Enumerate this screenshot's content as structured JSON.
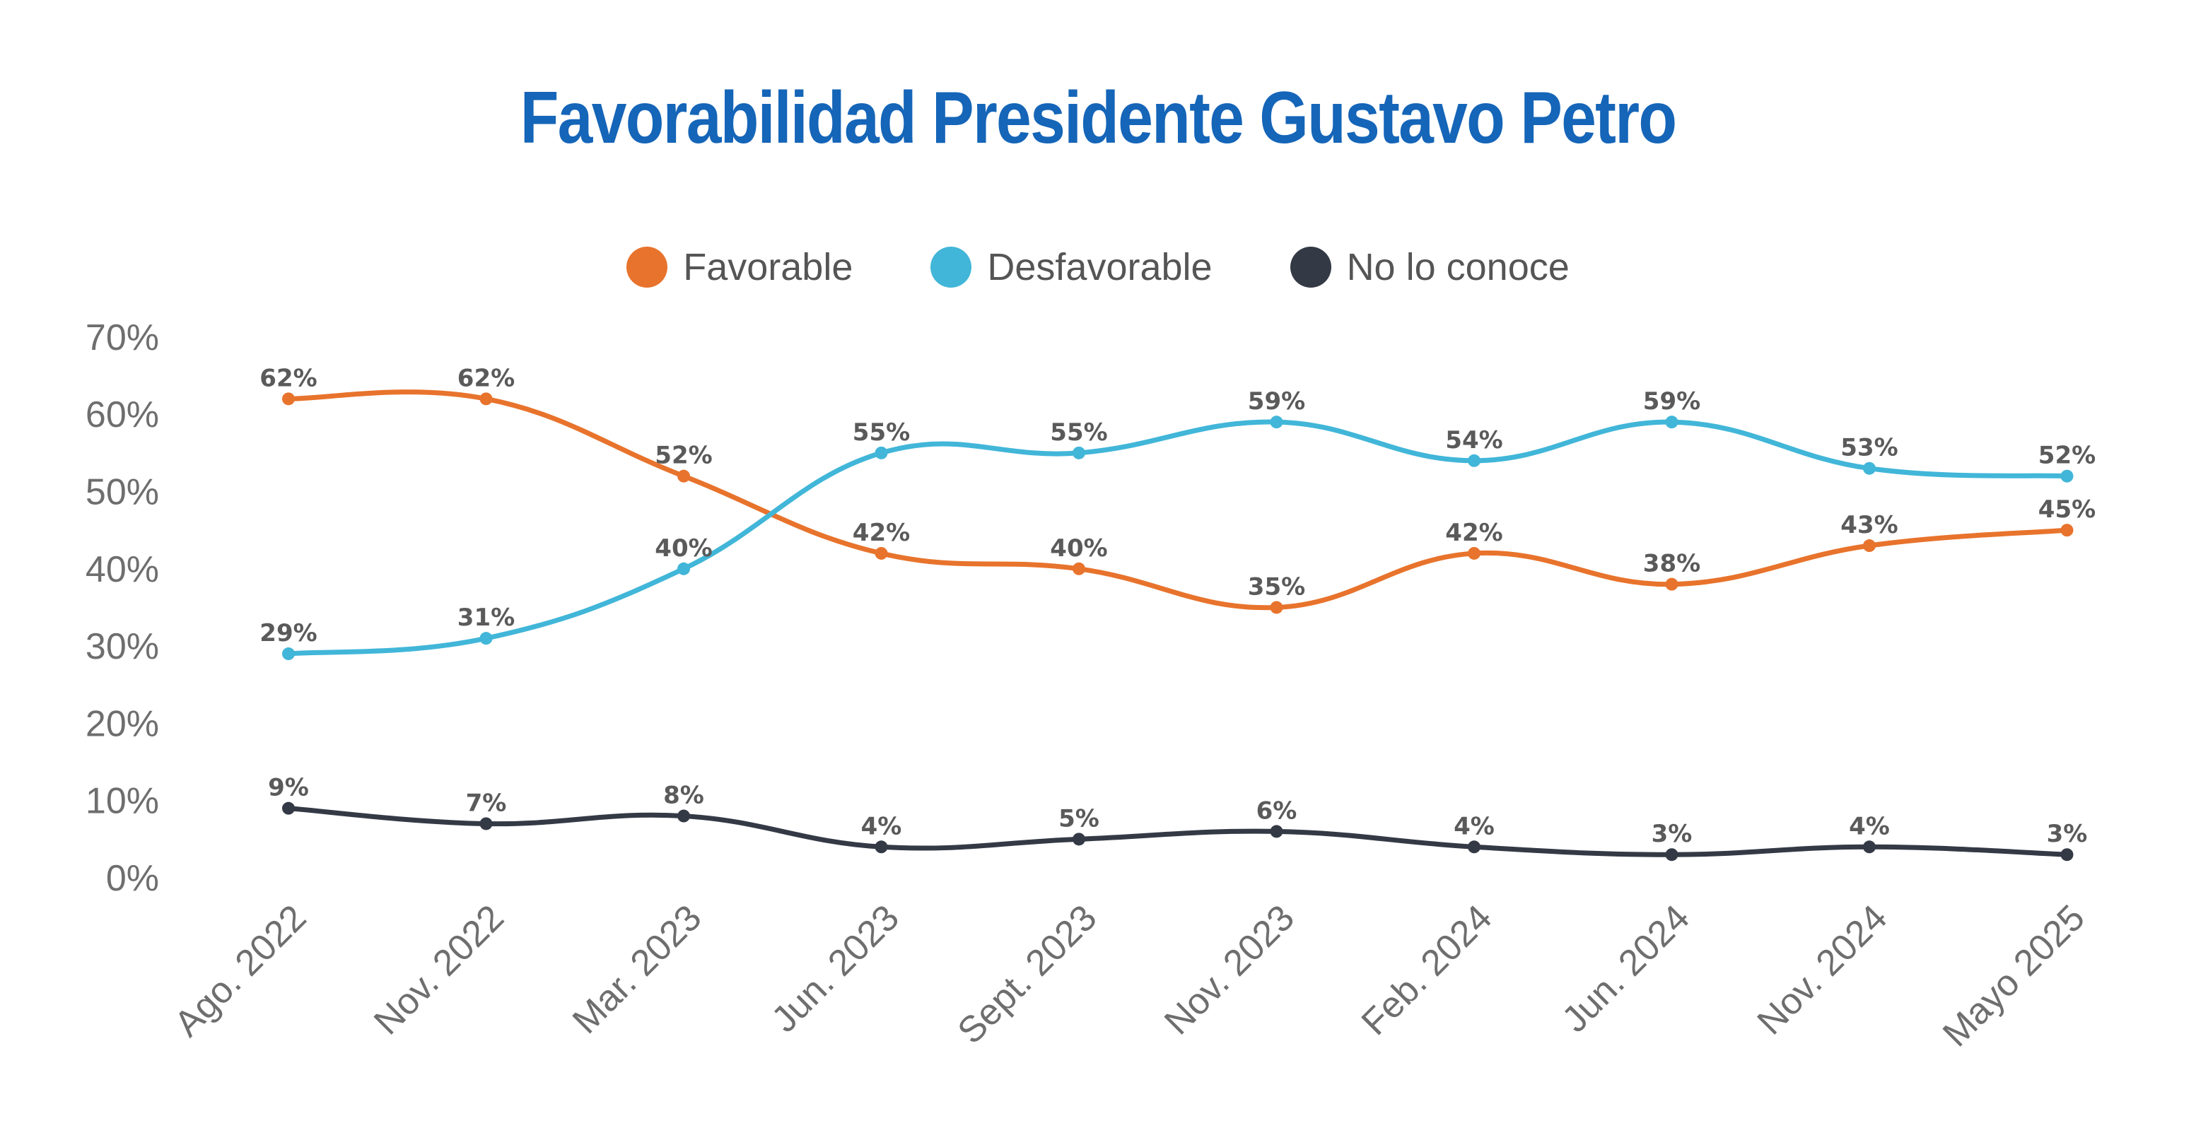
{
  "chart_data": {
    "type": "line",
    "title": "Favorabilidad Presidente Gustavo Petro",
    "categories": [
      "Ago. 2022",
      "Nov. 2022",
      "Mar. 2023",
      "Jun. 2023",
      "Sept. 2023",
      "Nov. 2023",
      "Feb. 2024",
      "Jun. 2024",
      "Nov. 2024",
      "Mayo 2025"
    ],
    "series": [
      {
        "name": "Favorable",
        "color": "#E8732C",
        "values": [
          62,
          62,
          52,
          42,
          40,
          35,
          42,
          38,
          43,
          45
        ]
      },
      {
        "name": "Desfavorable",
        "color": "#41B6D8",
        "values": [
          29,
          31,
          40,
          55,
          55,
          59,
          54,
          59,
          53,
          52
        ]
      },
      {
        "name": "No lo conoce",
        "color": "#343A45",
        "values": [
          9,
          7,
          8,
          4,
          5,
          6,
          4,
          3,
          4,
          3
        ]
      }
    ],
    "yticks": [
      "0%",
      "10%",
      "20%",
      "30%",
      "40%",
      "50%",
      "60%",
      "70%"
    ],
    "ylim": [
      0,
      70
    ],
    "value_suffix": "%",
    "xlabel": "",
    "ylabel": "",
    "grid": false,
    "legend_position": "top-center",
    "title_color": "#1565B8"
  }
}
